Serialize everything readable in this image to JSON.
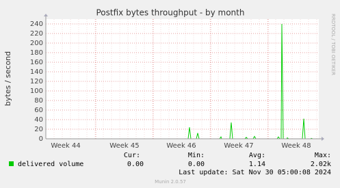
{
  "chart_data": {
    "type": "line",
    "title": "Postfix bytes throughput - by month",
    "y_label": "bytes / second",
    "watermark": "RRDTOOL / TOBI OETIKER",
    "x": [
      0,
      17.33,
      17.5,
      17.67,
      18.33,
      18.5,
      18.67,
      21.17,
      21.33,
      21.42,
      22.42,
      22.58,
      22.75,
      24.25,
      24.42,
      24.58,
      25.25,
      25.42,
      25.58,
      28.17,
      28.33,
      28.5,
      28.67,
      28.75,
      28.92,
      29.33,
      29.42,
      29.58,
      31.25,
      31.42,
      31.58,
      32.25,
      32.33,
      32.5,
      33.25
    ],
    "series": [
      {
        "name": "delivered volume",
        "color": "#00cc00",
        "values": [
          0,
          0,
          24,
          0,
          0,
          12,
          0,
          0,
          4,
          0,
          0,
          34,
          0,
          0,
          3,
          0,
          0,
          5,
          0,
          0,
          4,
          0,
          0,
          240,
          0,
          0,
          2,
          0,
          0,
          42,
          0,
          0,
          1,
          0,
          0
        ]
      }
    ],
    "xlim": [
      0,
      33.25
    ],
    "xticks": [
      {
        "value": 2.42,
        "label": "Week 44"
      },
      {
        "value": 9.58,
        "label": "Week 45"
      },
      {
        "value": 16.5,
        "label": "Week 46"
      },
      {
        "value": 23.5,
        "label": "Week 47"
      },
      {
        "value": 30.5,
        "label": "Week 48"
      }
    ],
    "ylim": [
      0,
      250
    ],
    "yticks": [
      0,
      20,
      40,
      60,
      80,
      100,
      120,
      140,
      160,
      180,
      200,
      220,
      240
    ],
    "grid": true,
    "legend": {
      "headers": [
        "Cur:",
        "Min:",
        "Avg:",
        "Max:"
      ],
      "stats": [
        "0.00",
        "0.00",
        "1.14",
        "2.02k"
      ]
    },
    "last_update": "Last update: Sat Nov 30 05:00:08 2024",
    "footer": "Munin 2.0.57"
  }
}
